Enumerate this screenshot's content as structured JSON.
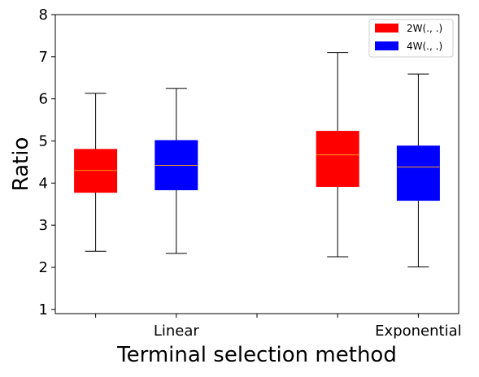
{
  "chart_data": {
    "type": "box",
    "title": "",
    "xlabel": "Terminal selection method",
    "ylabel": "Ratio",
    "ylim": [
      0.9,
      8.0
    ],
    "yticks": [
      1,
      2,
      3,
      4,
      5,
      6,
      7,
      8
    ],
    "categories": [
      "Linear",
      "Exponential"
    ],
    "legend": {
      "placement": "top-right",
      "entries": [
        {
          "label": "2W(., .)",
          "color": "#ff0000"
        },
        {
          "label": "4W(., .)",
          "color": "#0000ff"
        }
      ]
    },
    "colors": {
      "median": "#ff9f1c",
      "whisker": "#000000",
      "axes": "#000000"
    },
    "boxes": [
      {
        "category": "Linear",
        "series": "2W(., .)",
        "color": "#ff0000",
        "whisker_low": 2.38,
        "q1": 3.78,
        "median": 4.3,
        "q3": 4.8,
        "whisker_high": 6.13
      },
      {
        "category": "Linear",
        "series": "4W(., .)",
        "color": "#0000ff",
        "whisker_low": 2.33,
        "q1": 3.84,
        "median": 4.42,
        "q3": 5.01,
        "whisker_high": 6.25
      },
      {
        "category": "Exponential",
        "series": "2W(., .)",
        "color": "#ff0000",
        "whisker_low": 2.25,
        "q1": 3.92,
        "median": 4.67,
        "q3": 5.23,
        "whisker_high": 7.1
      },
      {
        "category": "Exponential",
        "series": "4W(., .)",
        "color": "#0000ff",
        "whisker_low": 2.01,
        "q1": 3.59,
        "median": 4.38,
        "q3": 4.88,
        "whisker_high": 6.59
      }
    ]
  }
}
